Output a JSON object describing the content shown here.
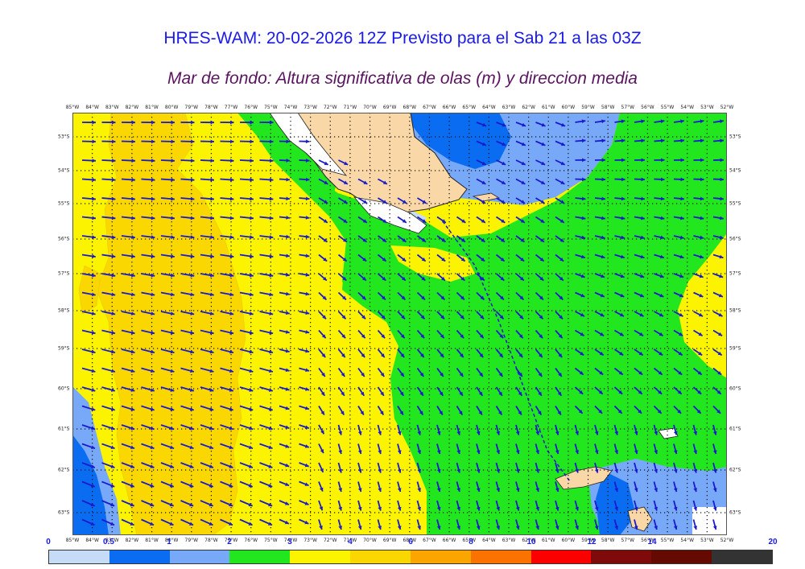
{
  "title": "HRES-WAM: 20-02-2026 12Z Previsto para el Sab 21 a las 03Z",
  "subtitle": "Mar de fondo: Altura significativa de olas (m) y direccion media",
  "longitude_labels": [
    "85°W",
    "84°W",
    "83°W",
    "82°W",
    "81°W",
    "80°W",
    "79°W",
    "78°W",
    "77°W",
    "76°W",
    "75°W",
    "74°W",
    "73°W",
    "72°W",
    "71°W",
    "70°W",
    "69°W",
    "68°W",
    "67°W",
    "66°W",
    "65°W",
    "64°W",
    "63°W",
    "62°W",
    "61°W",
    "60°W",
    "59°W",
    "58°W",
    "57°W",
    "56°W",
    "55°W",
    "54°W",
    "53°W",
    "52°W"
  ],
  "latitude_labels": [
    "53°S",
    "54°S",
    "55°S",
    "56°S",
    "57°S",
    "58°S",
    "59°S",
    "60°S",
    "61°S",
    "62°S",
    "63°S"
  ],
  "colorbar": {
    "tick_labels": [
      "0",
      "0.5",
      "1",
      "2",
      "3",
      "4",
      "6",
      "8",
      "10",
      "12",
      "14",
      "20"
    ],
    "colors": [
      "#c6dcf6",
      "#0a6cf0",
      "#78a8f8",
      "#22e61e",
      "#fbf300",
      "#fad700",
      "#fba600",
      "#fa7300",
      "#fc0000",
      "#7e0a0a",
      "#640a00",
      "#333333"
    ]
  },
  "palette": {
    "land": "#fad7a6",
    "coast": "#222222",
    "arrow": "#1a1acd",
    "track": "#1a1acd",
    "title_color": "#1a1ae6",
    "subtitle_color": "#5a1460"
  }
}
